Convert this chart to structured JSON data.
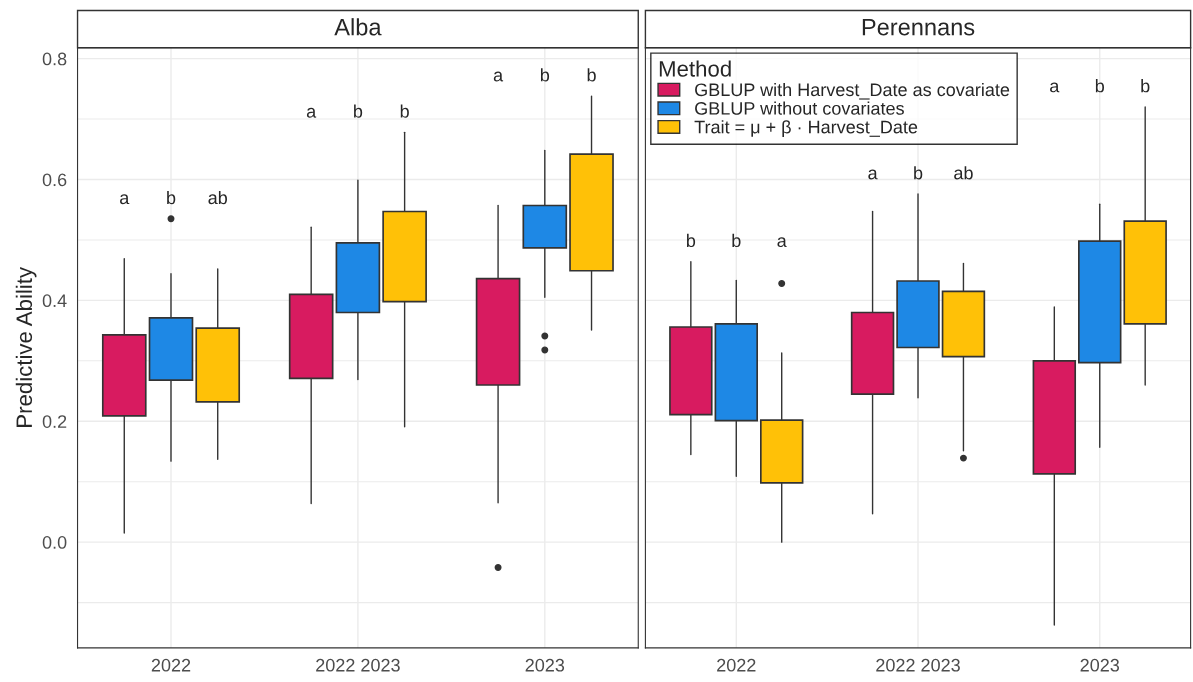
{
  "chart_data": [
    {
      "type": "box",
      "title": "Alba",
      "ylabel": "Predictive Ability",
      "categories": [
        "2022",
        "2022 2023",
        "2023"
      ],
      "ylim": [
        -0.175,
        0.818
      ],
      "yticks": [
        {
          "value": 0,
          "label": "0.0"
        },
        0.2,
        0.4,
        0.6,
        0.8
      ],
      "grid": true,
      "series": [
        {
          "color": "#d81b60",
          "boxes": [
            {
              "low": 0.015,
              "q1": 0.209,
              "median": 0.255,
              "q3": 0.343,
              "high": 0.469,
              "mean": 0.261
            },
            {
              "low": 0.064,
              "q1": 0.271,
              "median": 0.367,
              "q3": 0.41,
              "high": 0.521,
              "mean": 0.345
            },
            {
              "low": 0.065,
              "q1": 0.26,
              "median": 0.361,
              "q3": 0.436,
              "high": 0.557,
              "mean": 0.323,
              "outliers": [
                -0.042
              ]
            }
          ]
        },
        {
          "color": "#1e88e5",
          "boxes": [
            {
              "low": 0.134,
              "q1": 0.268,
              "median": 0.33,
              "q3": 0.371,
              "high": 0.444,
              "mean": 0.331,
              "outliers": [
                0.535
              ]
            },
            {
              "low": 0.269,
              "q1": 0.38,
              "median": 0.438,
              "q3": 0.495,
              "high": 0.599,
              "mean": 0.446
            },
            {
              "low": 0.405,
              "q1": 0.487,
              "median": 0.519,
              "q3": 0.557,
              "high": 0.648,
              "mean": 0.516,
              "outliers": [
                0.341,
                0.318
              ]
            }
          ]
        },
        {
          "color": "#ffc107",
          "boxes": [
            {
              "low": 0.137,
              "q1": 0.232,
              "median": 0.317,
              "q3": 0.354,
              "high": 0.452,
              "mean": 0.302
            },
            {
              "low": 0.191,
              "q1": 0.398,
              "median": 0.462,
              "q3": 0.547,
              "high": 0.678,
              "mean": 0.46
            },
            {
              "low": 0.351,
              "q1": 0.449,
              "median": 0.54,
              "q3": 0.642,
              "high": 0.738,
              "mean": 0.536
            }
          ]
        }
      ],
      "annotations": [
        "a",
        "b",
        "ab",
        "a",
        "b",
        "b",
        "a",
        "b",
        "b"
      ]
    },
    {
      "type": "box",
      "title": "Perennans",
      "legend_title": "Method",
      "categories": [
        "2022",
        "2022 2023",
        "2023"
      ],
      "ylim": [
        -0.175,
        0.818
      ],
      "yticks": [
        0,
        0.2,
        0.4,
        0.6,
        0.8
      ],
      "tick_labels": "x",
      "grid": true,
      "legend": "top left",
      "series": [
        {
          "name": "GBLUP with Harvest_Date as covariate",
          "color": "#d81b60",
          "boxes": [
            {
              "low": 0.145,
              "q1": 0.211,
              "median": 0.297,
              "q3": 0.356,
              "high": 0.464,
              "mean": 0.294
            },
            {
              "low": 0.047,
              "q1": 0.245,
              "median": 0.296,
              "q3": 0.38,
              "high": 0.547,
              "mean": 0.3
            },
            {
              "low": -0.137,
              "q1": 0.113,
              "median": 0.266,
              "q3": 0.3,
              "high": 0.389,
              "mean": 0.204
            }
          ]
        },
        {
          "name": "GBLUP without covariates",
          "color": "#1e88e5",
          "boxes": [
            {
              "low": 0.109,
              "q1": 0.201,
              "median": 0.266,
              "q3": 0.361,
              "high": 0.433,
              "mean": 0.278
            },
            {
              "low": 0.239,
              "q1": 0.322,
              "median": 0.373,
              "q3": 0.432,
              "high": 0.576,
              "mean": 0.382
            },
            {
              "low": 0.157,
              "q1": 0.297,
              "median": 0.411,
              "q3": 0.498,
              "high": 0.559,
              "mean": 0.392
            }
          ]
        },
        {
          "name": "Trait = μ + β · Harvest_Date",
          "color": "#ffc107",
          "boxes": [
            {
              "low": 0.0,
              "q1": 0.098,
              "median": 0.171,
              "q3": 0.202,
              "high": 0.313,
              "mean": 0.158,
              "outliers": [
                0.428
              ]
            },
            {
              "low": 0.151,
              "q1": 0.307,
              "median": 0.349,
              "q3": 0.415,
              "high": 0.461,
              "mean": 0.343,
              "outliers": [
                0.139
              ]
            },
            {
              "low": 0.26,
              "q1": 0.361,
              "median": 0.426,
              "q3": 0.531,
              "high": 0.72,
              "mean": 0.451
            }
          ]
        }
      ],
      "annotations": [
        "b",
        "b",
        "a",
        "a",
        "b",
        "ab",
        "a",
        "b",
        "b"
      ]
    }
  ]
}
